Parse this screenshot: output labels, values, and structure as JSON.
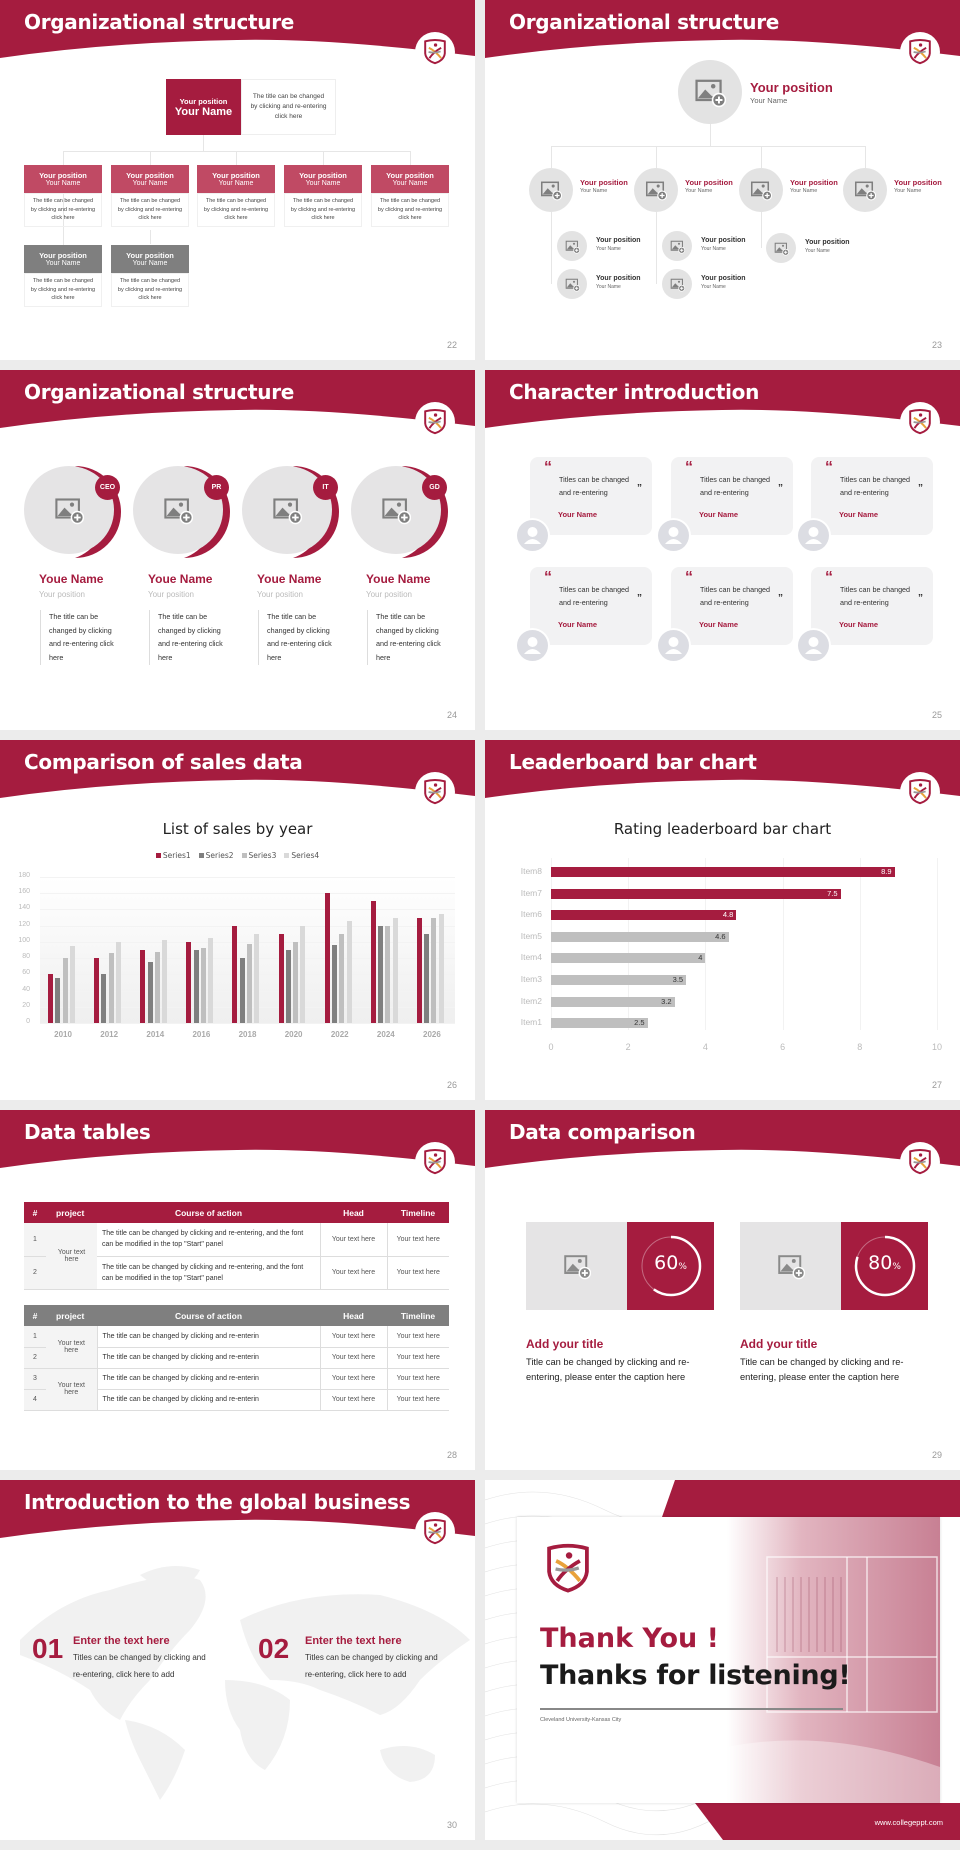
{
  "colors": {
    "brand": "#a51c3f",
    "brand_light": "#c04a64",
    "gray_dark": "#7f7f7f",
    "gray": "#bfbfbf",
    "gray_light": "#d9d9d9",
    "placeholder": "#e3e3e3"
  },
  "slides": [
    {
      "title": "Organizational structure",
      "page": "22",
      "top": {
        "position": "Your position",
        "name": "Your Name",
        "desc": "The title can be changed by clicking and re-entering click here"
      },
      "members": [
        {
          "position": "Your position",
          "name": "Your Name",
          "desc": "The title can be changed by clicking and re-entering click here",
          "tone": "brand"
        },
        {
          "position": "Your position",
          "name": "Your Name",
          "desc": "The title can be changed by clicking and re-entering click here",
          "tone": "brand"
        },
        {
          "position": "Your position",
          "name": "Your Name",
          "desc": "The title can be changed by clicking and re-entering click here",
          "tone": "brand"
        },
        {
          "position": "Your position",
          "name": "Your Name",
          "desc": "The title can be changed by clicking and re-entering click here",
          "tone": "brand"
        },
        {
          "position": "Your position",
          "name": "Your Name",
          "desc": "The title can be changed by clicking and re-entering click here",
          "tone": "brand"
        },
        {
          "position": "Your position",
          "name": "Your Name",
          "desc": "The title can be changed by clicking and re-entering click here",
          "tone": "gray"
        },
        {
          "position": "Your position",
          "name": "Your Name",
          "desc": "The title can be changed by clicking and re-entering click here",
          "tone": "gray"
        }
      ]
    },
    {
      "title": "Organizational structure",
      "page": "23",
      "top": {
        "position": "Your position",
        "name": "Your Name",
        "icon": "image-add-icon"
      },
      "mid": [
        {
          "position": "Your position",
          "name": "Your Name"
        },
        {
          "position": "Your position",
          "name": "Your Name"
        },
        {
          "position": "Your position",
          "name": "Your Name"
        },
        {
          "position": "Your position",
          "name": "Your Name"
        }
      ],
      "sub": [
        {
          "position": "Your position",
          "name": "Your Name"
        },
        {
          "position": "Your position",
          "name": "Your Name"
        },
        {
          "position": "Your position",
          "name": "Your Name"
        },
        {
          "position": "Your position",
          "name": "Your Name"
        },
        {
          "position": "Your position",
          "name": "Your Name"
        }
      ]
    },
    {
      "title": "Organizational structure",
      "page": "24",
      "people": [
        {
          "badge": "CEO",
          "name": "Youe Name",
          "position": "Your position",
          "desc": "The title can be changed by clicking and re-entering click here"
        },
        {
          "badge": "PR",
          "name": "Youe Name",
          "position": "Your position",
          "desc": "The title can be changed by clicking and re-entering click here"
        },
        {
          "badge": "IT",
          "name": "Youe Name",
          "position": "Your position",
          "desc": "The title can be changed by clicking and re-entering click here"
        },
        {
          "badge": "GD",
          "name": "Youe Name",
          "position": "Your position",
          "desc": "The title can be changed by clicking and re-entering click here"
        }
      ]
    },
    {
      "title": "Character introduction",
      "page": "25",
      "cards": [
        {
          "quote": "Titles can be changed and re-entering",
          "name": "Your Name"
        },
        {
          "quote": "Titles can be changed and re-entering",
          "name": "Your Name"
        },
        {
          "quote": "Titles can be changed and re-entering",
          "name": "Your Name"
        },
        {
          "quote": "Titles can be changed and re-entering",
          "name": "Your Name"
        },
        {
          "quote": "Titles can be changed and re-entering",
          "name": "Your Name"
        },
        {
          "quote": "Titles can be changed and re-entering",
          "name": "Your Name"
        }
      ],
      "open_quote": "“",
      "close_quote": "”"
    },
    {
      "title": "Comparison of sales data",
      "page": "26"
    },
    {
      "title": "Leaderboard bar chart",
      "page": "27"
    },
    {
      "title": "Data tables",
      "page": "28",
      "headers": [
        "#",
        "project",
        "Course of action",
        "Head",
        "Timeline"
      ],
      "table1": {
        "project": "Your text here",
        "rows": [
          {
            "n": "1",
            "action": "The title can be changed by clicking and re-entering, and the font can be modified in the top \"Start\" panel",
            "head": "Your text here",
            "timeline": "Your text here"
          },
          {
            "n": "2",
            "action": "The title can be changed by clicking and re-entering, and the font can be modified in the top \"Start\" panel",
            "head": "Your text here",
            "timeline": "Your text here"
          }
        ]
      },
      "table2": {
        "groups": [
          {
            "project": "Your text here",
            "rows": [
              {
                "n": "1",
                "action": "The title can be changed by clicking and re-enterin",
                "head": "Your text here",
                "timeline": "Your text here"
              },
              {
                "n": "2",
                "action": "The title can be changed by clicking and re-enterin",
                "head": "Your text here",
                "timeline": "Your text here"
              }
            ]
          },
          {
            "project": "Your text here",
            "rows": [
              {
                "n": "3",
                "action": "The title can be changed by clicking and re-enterin",
                "head": "Your text here",
                "timeline": "Your text here"
              },
              {
                "n": "4",
                "action": "The title can be changed by clicking and re-enterin",
                "head": "Your text here",
                "timeline": "Your text here"
              }
            ]
          }
        ]
      }
    },
    {
      "title": "Data comparison",
      "page": "29",
      "items": [
        {
          "percent": 60,
          "label": "60",
          "unit": "%",
          "title": "Add your title",
          "text": "Title can be changed by clicking and re-entering, please enter the caption here"
        },
        {
          "percent": 80,
          "label": "80",
          "unit": "%",
          "title": "Add your title",
          "text": "Title can be changed by clicking and re-entering, please enter the caption here"
        }
      ]
    },
    {
      "title": "Introduction to the global business",
      "page": "30",
      "items": [
        {
          "num": "01",
          "title": "Enter the text here",
          "text": "Titles can be changed by clicking and re-entering, click here to add"
        },
        {
          "num": "02",
          "title": "Enter the text here",
          "text": "Titles can be changed by clicking and re-entering, click here to add"
        }
      ]
    },
    {
      "thank_you": "Thank You !",
      "thanks": "Thanks for listening!",
      "school": "Cleveland University-Kansas City",
      "url": "www.collegeppt.com"
    }
  ],
  "chart_data": [
    {
      "type": "bar",
      "title": "List of sales by year",
      "categories": [
        "2010",
        "2012",
        "2014",
        "2016",
        "2018",
        "2020",
        "2022",
        "2024",
        "2026"
      ],
      "series": [
        {
          "name": "Series1",
          "color": "#a51c3f",
          "values": [
            60,
            80,
            90,
            100,
            120,
            110,
            160,
            150,
            130
          ]
        },
        {
          "name": "Series2",
          "color": "#7f7f7f",
          "values": [
            55,
            60,
            75,
            90,
            80,
            90,
            96,
            120,
            110
          ]
        },
        {
          "name": "Series3",
          "color": "#bfbfbf",
          "values": [
            80,
            86,
            88,
            92,
            98,
            100,
            110,
            120,
            130
          ]
        },
        {
          "name": "Series4",
          "color": "#d9d9d9",
          "values": [
            95,
            100,
            102,
            105,
            110,
            120,
            126,
            130,
            135
          ]
        }
      ],
      "ylim": [
        0,
        180
      ],
      "yticks": [
        "0",
        "20",
        "40",
        "60",
        "80",
        "100",
        "120",
        "140",
        "160",
        "180"
      ],
      "legend": "top",
      "grid": true
    },
    {
      "type": "bar",
      "orientation": "horizontal",
      "title": "Rating leaderboard bar chart",
      "categories": [
        "Item8",
        "Item7",
        "Item6",
        "Item5",
        "Item4",
        "Item3",
        "Item2",
        "Item1"
      ],
      "values": [
        8.9,
        7.5,
        4.8,
        4.6,
        4,
        3.5,
        3.2,
        2.5
      ],
      "labels": [
        "8.9",
        "7.5",
        "4.8",
        "4.6",
        "4",
        "3.5",
        "3.2",
        "2.5"
      ],
      "highlight_top": 3,
      "xlim": [
        0,
        10
      ],
      "xticks": [
        "0",
        "2",
        "4",
        "6",
        "8",
        "10"
      ],
      "grid": true
    }
  ]
}
